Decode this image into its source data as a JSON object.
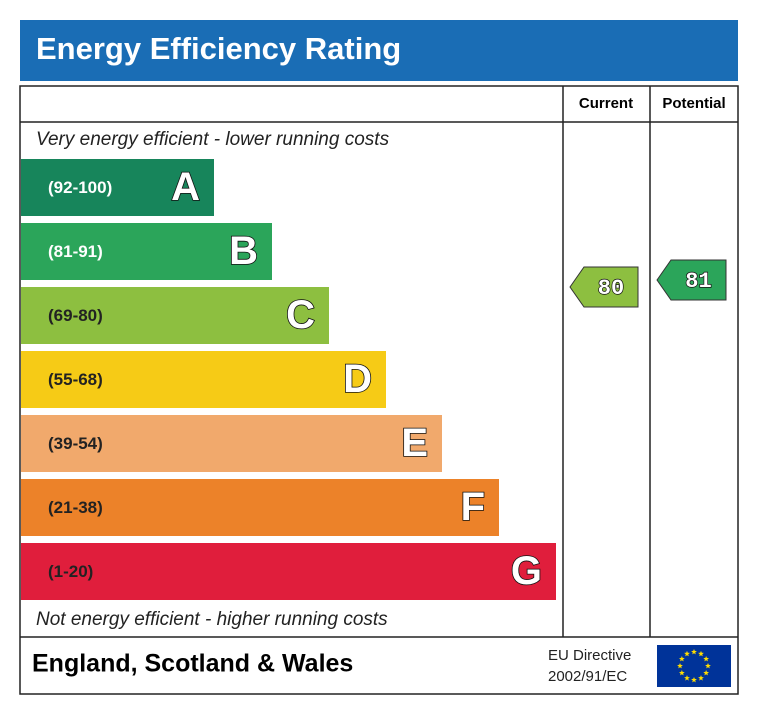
{
  "header": {
    "title": "Energy Efficiency Rating"
  },
  "columns": {
    "current": "Current",
    "potential": "Potential"
  },
  "top_note": "Very energy efficient - lower running costs",
  "bottom_note": "Not energy efficient - higher running costs",
  "bands": [
    {
      "range": "(92-100)",
      "letter": "A",
      "color": "#17855b"
    },
    {
      "range": "(81-91)",
      "letter": "B",
      "color": "#2ba55a"
    },
    {
      "range": "(69-80)",
      "letter": "C",
      "color": "#8dbf40"
    },
    {
      "range": "(55-68)",
      "letter": "D",
      "color": "#f6cb16"
    },
    {
      "range": "(39-54)",
      "letter": "E",
      "color": "#f1a96c"
    },
    {
      "range": "(21-38)",
      "letter": "F",
      "color": "#ec8229"
    },
    {
      "range": "(1-20)",
      "letter": "G",
      "color": "#e01e3c"
    }
  ],
  "current": 80,
  "potential": 81,
  "footer": {
    "region": "England, Scotland & Wales",
    "directive_line1": "EU Directive",
    "directive_line2": "2002/91/EC"
  }
}
